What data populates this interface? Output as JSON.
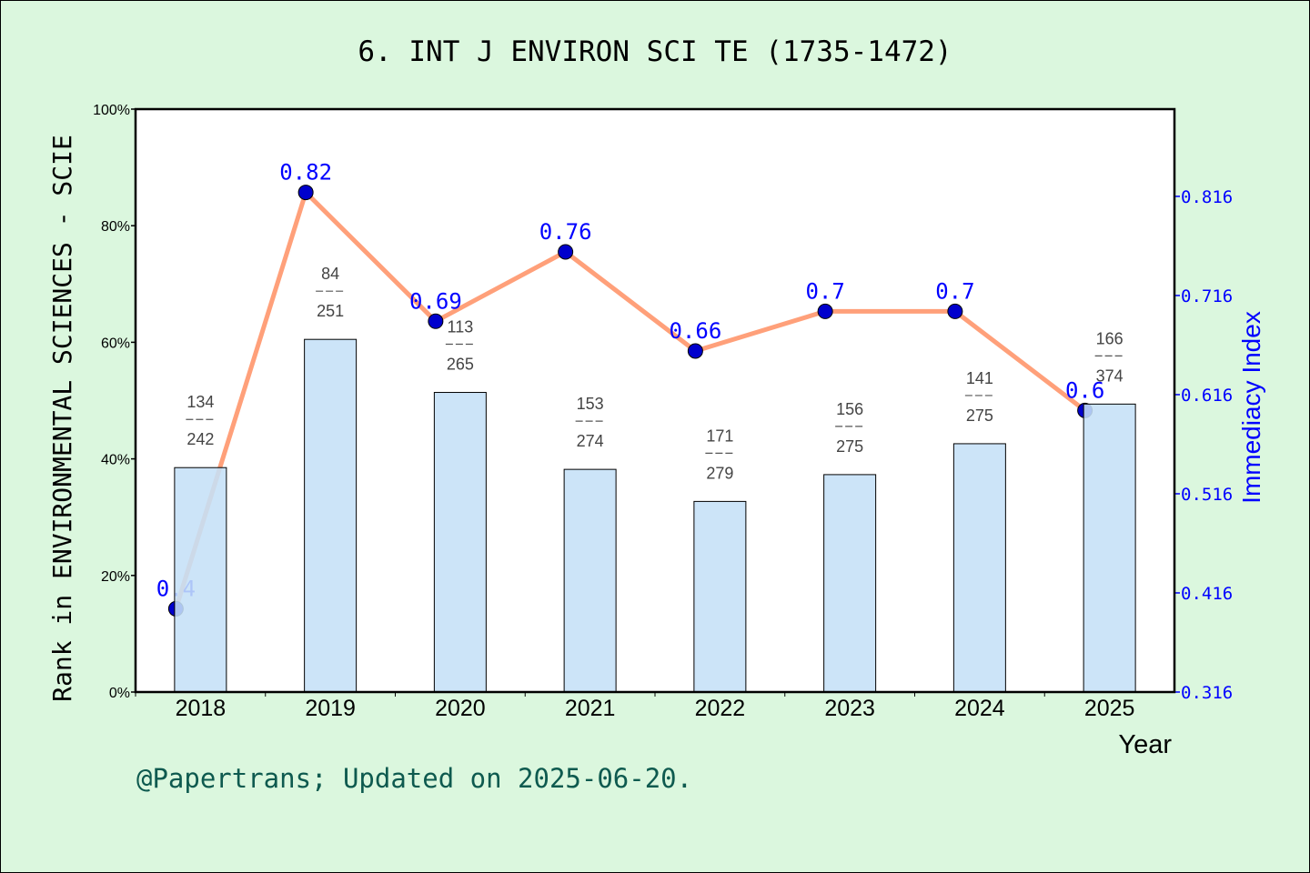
{
  "chart_data": {
    "type": "bar+line",
    "title": "6. INT J ENVIRON SCI TE (1735-1472)",
    "xlabel": "Year",
    "ylabel": "Rank in ENVIRONMENTAL SCIENCES - SCIE",
    "ylabel_right": "Immediacy Index",
    "categories": [
      "2018",
      "2019",
      "2020",
      "2021",
      "2022",
      "2023",
      "2024",
      "2025"
    ],
    "ylim": [
      0,
      100
    ],
    "yticks": [
      "0%",
      "20%",
      "40%",
      "60%",
      "80%",
      "100%"
    ],
    "ylim_right": [
      0.316,
      0.904
    ],
    "yticks_right": [
      "0.316",
      "0.416",
      "0.516",
      "0.616",
      "0.716",
      "0.816"
    ],
    "bars": {
      "values": [
        38.5,
        60.5,
        51.4,
        38.2,
        32.7,
        37.3,
        42.6,
        49.4
      ],
      "rank": [
        134,
        84,
        113,
        153,
        171,
        156,
        141,
        166
      ],
      "total": [
        242,
        251,
        265,
        274,
        279,
        275,
        275,
        374
      ],
      "color": "#c5e0f7"
    },
    "line": {
      "values": [
        0.4,
        0.82,
        0.69,
        0.76,
        0.66,
        0.7,
        0.7,
        0.6
      ],
      "labels": [
        "0.4",
        "0.82",
        "0.69",
        "0.76",
        "0.66",
        "0.7",
        "0.7",
        "0.6"
      ],
      "color": "#ffa07a",
      "marker_color": "#0000cd"
    },
    "grid": false
  },
  "footer": "@Papertrans; Updated on 2025-06-20."
}
